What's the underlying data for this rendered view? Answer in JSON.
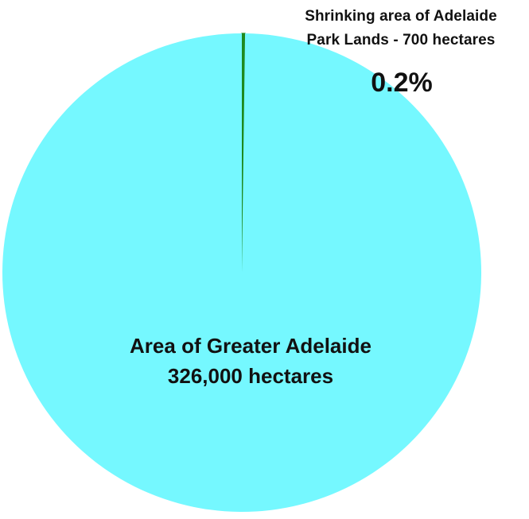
{
  "chart_data": {
    "type": "pie",
    "slices": [
      {
        "label": "Area of Greater Adelaide",
        "value": 326000,
        "value_label": "326,000 hectares",
        "color": "#75f8ff"
      },
      {
        "label": "Shrinking area of Adelaide Park Lands",
        "value": 700,
        "value_label": "700 hectares",
        "percent_label": "0.2%",
        "color": "#1f8a1f"
      }
    ],
    "annotations": {
      "small_line1": "Shrinking area of Adelaide",
      "small_line2": "Park Lands - 700 hectares",
      "small_percent": "0.2%",
      "big_line1": "Area of Greater Adelaide",
      "big_line2": "326,000 hectares"
    },
    "legend": "none"
  }
}
